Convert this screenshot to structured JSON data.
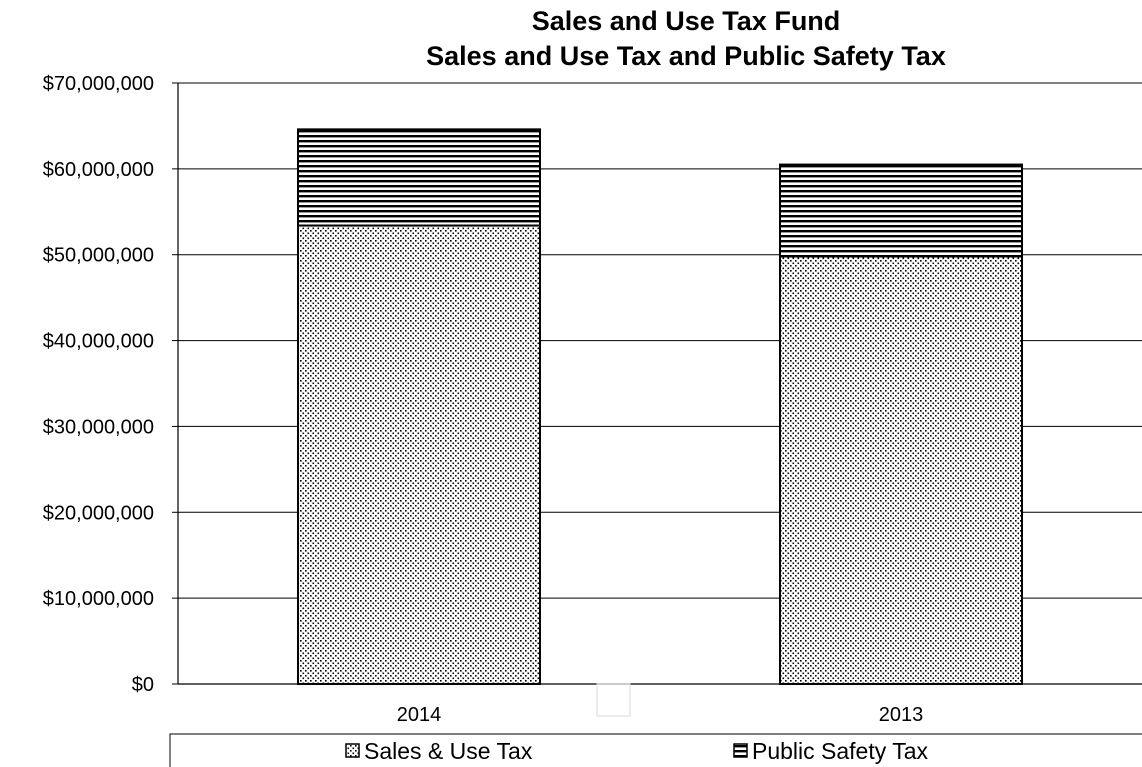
{
  "chart_data": {
    "type": "bar",
    "stacked": true,
    "title": [
      "Sales and Use Tax Fund",
      "Sales and Use Tax and Public Safety Tax"
    ],
    "categories": [
      "2014",
      "2013"
    ],
    "series": [
      {
        "name": "Sales & Use Tax",
        "values": [
          53400000,
          49800000
        ],
        "color": "#000000",
        "pattern": "dots"
      },
      {
        "name": "Public Safety Tax",
        "values": [
          11200000,
          10700000
        ],
        "color": "#000000",
        "pattern": "horizontal-lines"
      }
    ],
    "ylim": [
      0,
      70000000
    ],
    "yticks": [
      0,
      10000000,
      20000000,
      30000000,
      40000000,
      50000000,
      60000000,
      70000000
    ],
    "ytick_labels": [
      "$0",
      "$10,000,000",
      "$20,000,000",
      "$30,000,000",
      "$40,000,000",
      "$50,000,000",
      "$60,000,000",
      "$70,000,000"
    ],
    "grid": true,
    "legend_position": "bottom"
  }
}
